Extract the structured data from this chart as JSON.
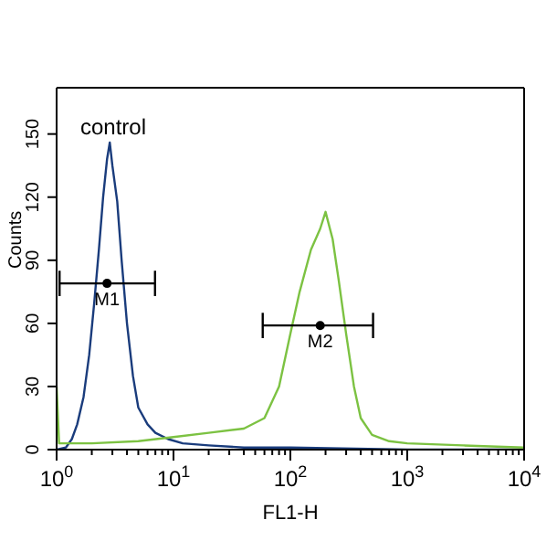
{
  "chart_data": {
    "type": "line",
    "xlabel": "FL1-H",
    "ylabel": "Counts",
    "log": "x",
    "xlim": [
      1,
      10000
    ],
    "ylim": [
      0,
      172
    ],
    "xticks": [
      {
        "value": 1,
        "label": "10$^{0}$"
      },
      {
        "value": 2,
        "label": null
      },
      {
        "value": 3,
        "label": null
      },
      {
        "value": 4,
        "label": null
      },
      {
        "value": 5,
        "label": null
      },
      {
        "value": 6,
        "label": null
      },
      {
        "value": 7,
        "label": null
      },
      {
        "value": 8,
        "label": null
      },
      {
        "value": 9,
        "label": null
      },
      {
        "value": 10,
        "label": "10$^{1}$"
      },
      {
        "value": 20,
        "label": null
      },
      {
        "value": 30,
        "label": null
      },
      {
        "value": 40,
        "label": null
      },
      {
        "value": 50,
        "label": null
      },
      {
        "value": 60,
        "label": null
      },
      {
        "value": 70,
        "label": null
      },
      {
        "value": 80,
        "label": null
      },
      {
        "value": 90,
        "label": null
      },
      {
        "value": 100,
        "label": "10$^{2}$"
      },
      {
        "value": 200,
        "label": null
      },
      {
        "value": 300,
        "label": null
      },
      {
        "value": 400,
        "label": null
      },
      {
        "value": 500,
        "label": null
      },
      {
        "value": 600,
        "label": null
      },
      {
        "value": 700,
        "label": null
      },
      {
        "value": 800,
        "label": null
      },
      {
        "value": 900,
        "label": null
      },
      {
        "value": 1000,
        "label": "10$^{3}$"
      },
      {
        "value": 2000,
        "label": null
      },
      {
        "value": 3000,
        "label": null
      },
      {
        "value": 4000,
        "label": null
      },
      {
        "value": 5000,
        "label": null
      },
      {
        "value": 6000,
        "label": null
      },
      {
        "value": 7000,
        "label": null
      },
      {
        "value": 8000,
        "label": null
      },
      {
        "value": 9000,
        "label": null
      },
      {
        "value": 10000,
        "label": "10$^{4}$"
      }
    ],
    "yticks": [
      0,
      30,
      60,
      90,
      120,
      150
    ],
    "marker": "none",
    "line_style": "solid",
    "series": [
      {
        "name": "control",
        "color": "#1a3c7c",
        "x": [
          1,
          1.2,
          1.35,
          1.5,
          1.7,
          1.9,
          2.1,
          2.3,
          2.5,
          2.7,
          2.85,
          3,
          3.3,
          3.6,
          4,
          4.5,
          5,
          6,
          7,
          9,
          12,
          20,
          40,
          100,
          1000,
          10000
        ],
        "values": [
          0,
          1,
          5,
          12,
          25,
          45,
          70,
          95,
          120,
          138,
          146,
          135,
          118,
          90,
          60,
          35,
          20,
          12,
          8,
          5,
          3,
          2,
          1,
          1,
          0,
          0
        ]
      },
      {
        "color": "#7cc242",
        "x": [
          1,
          1.05,
          2,
          5,
          10,
          20,
          40,
          60,
          80,
          100,
          120,
          150,
          180,
          200,
          230,
          260,
          300,
          350,
          400,
          500,
          700,
          1000,
          3000,
          10000
        ],
        "values": [
          30,
          3,
          3,
          4,
          6,
          8,
          10,
          15,
          30,
          55,
          75,
          95,
          105,
          113,
          100,
          80,
          55,
          30,
          15,
          7,
          4,
          3,
          2,
          1
        ]
      },
      {
        "type": "scatter",
        "name": "M1",
        "color": "#000000",
        "marker": "circle",
        "x": [
          2.7
        ],
        "values": [
          79
        ],
        "xerrors": [
          [
            1.06,
            6.95
          ]
        ]
      },
      {
        "type": "scatter",
        "name": "M2",
        "color": "#000000",
        "marker": "circle",
        "x": [
          180
        ],
        "values": [
          59
        ],
        "xerrors": [
          [
            58,
            510
          ]
        ]
      }
    ]
  }
}
